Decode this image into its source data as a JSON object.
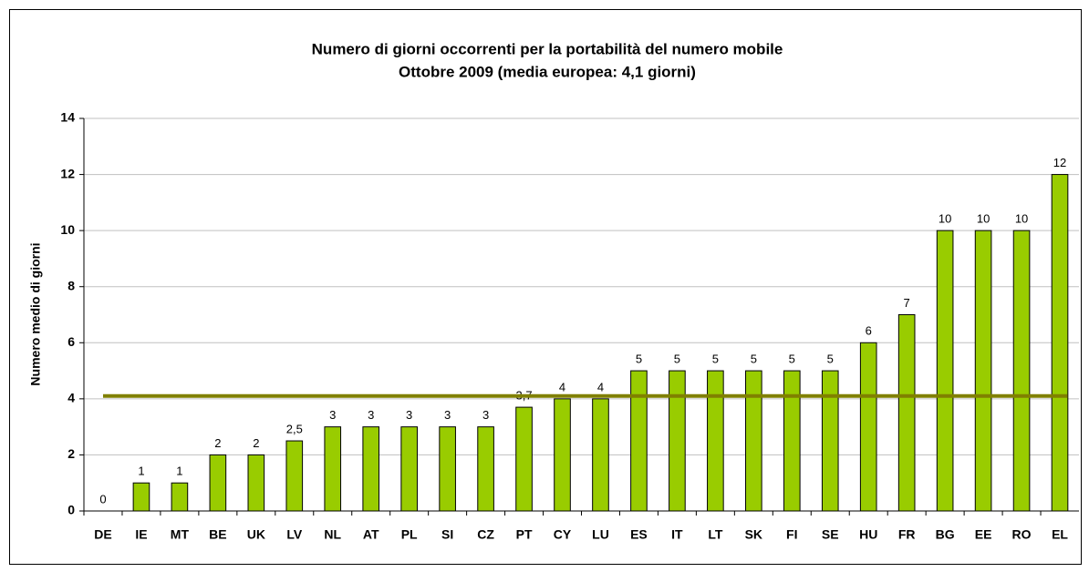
{
  "chart_data": {
    "type": "bar",
    "title": "Numero di giorni occorrenti per la portabilità del numero mobile",
    "subtitle": "Ottobre 2009 (media europea: 4,1 giorni)",
    "y_label": "Numero medio di giorni",
    "categories": [
      "DE",
      "IE",
      "MT",
      "BE",
      "UK",
      "LV",
      "NL",
      "AT",
      "PL",
      "SI",
      "CZ",
      "PT",
      "CY",
      "LU",
      "ES",
      "IT",
      "LT",
      "SK",
      "FI",
      "SE",
      "HU",
      "FR",
      "BG",
      "EE",
      "RO",
      "EL"
    ],
    "values": [
      0,
      1,
      1,
      2,
      2,
      2.5,
      3,
      3,
      3,
      3,
      3,
      3.7,
      4,
      4,
      5,
      5,
      5,
      5,
      5,
      5,
      6,
      7,
      10,
      10,
      10,
      12
    ],
    "value_labels": [
      "0",
      "1",
      "1",
      "2",
      "2",
      "2,5",
      "3",
      "3",
      "3",
      "3",
      "3",
      "3,7",
      "4",
      "4",
      "5",
      "5",
      "5",
      "5",
      "5",
      "5",
      "6",
      "7",
      "10",
      "10",
      "10",
      "12"
    ],
    "color": "#99cc00",
    "average_line": 4.1,
    "average_line_color": "#808000",
    "ylim": [
      0,
      14
    ],
    "yticks": [
      0,
      2,
      4,
      6,
      8,
      10,
      12,
      14
    ],
    "grid": true
  }
}
